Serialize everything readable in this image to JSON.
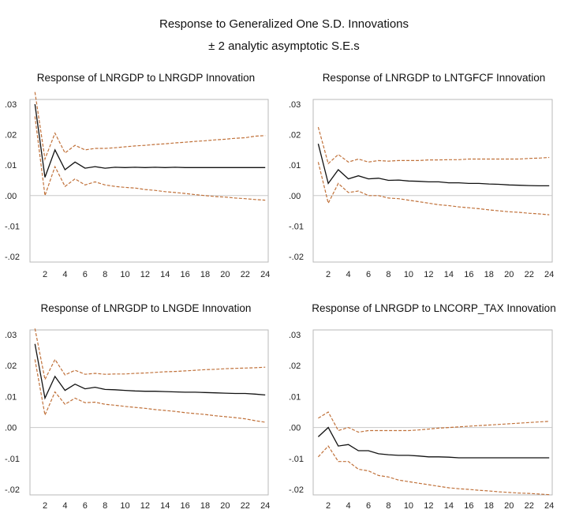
{
  "page": {
    "title": "Response to Generalized One S.D. Innovations",
    "subtitle": "± 2 analytic asymptotic S.E.s"
  },
  "colors": {
    "response": "#111111",
    "band": "#c0713a"
  },
  "chart_data": [
    {
      "type": "line",
      "title": "Response of LNRGDP to LNRGDP Innovation",
      "x": [
        1,
        2,
        3,
        4,
        5,
        6,
        7,
        8,
        9,
        10,
        11,
        12,
        13,
        14,
        15,
        16,
        17,
        18,
        19,
        20,
        21,
        22,
        23,
        24
      ],
      "ylim": [
        -0.02,
        0.03
      ],
      "yticks": [
        ".03",
        ".02",
        ".01",
        ".00",
        "-.01",
        "-.02"
      ],
      "ytick_values": [
        0.03,
        0.02,
        0.01,
        0.0,
        -0.01,
        -0.02
      ],
      "xticks": [
        2,
        4,
        6,
        8,
        10,
        12,
        14,
        16,
        18,
        20,
        22,
        24
      ],
      "series": [
        {
          "name": "response",
          "values": [
            0.03,
            0.006,
            0.015,
            0.0085,
            0.011,
            0.009,
            0.0095,
            0.009,
            0.0093,
            0.0092,
            0.0093,
            0.0092,
            0.0093,
            0.0092,
            0.0093,
            0.0092,
            0.0092,
            0.0092,
            0.0092,
            0.0092,
            0.0092,
            0.0092,
            0.0092,
            0.0092
          ]
        },
        {
          "name": "upper",
          "values": [
            0.034,
            0.012,
            0.0205,
            0.014,
            0.0165,
            0.015,
            0.0155,
            0.0155,
            0.0157,
            0.016,
            0.0163,
            0.0165,
            0.0168,
            0.017,
            0.0173,
            0.0175,
            0.0178,
            0.018,
            0.0183,
            0.0185,
            0.0188,
            0.019,
            0.0195,
            0.0197
          ]
        },
        {
          "name": "lower",
          "values": [
            0.026,
            0.0,
            0.0095,
            0.003,
            0.0055,
            0.0035,
            0.0045,
            0.0035,
            0.003,
            0.0027,
            0.0025,
            0.002,
            0.0017,
            0.0013,
            0.001,
            0.0007,
            0.0003,
            0.0,
            -0.0003,
            -0.0005,
            -0.0008,
            -0.001,
            -0.0013,
            -0.0015
          ]
        }
      ]
    },
    {
      "type": "line",
      "title": "Response of LNRGDP to LNTGFCF Innovation",
      "x": [
        1,
        2,
        3,
        4,
        5,
        6,
        7,
        8,
        9,
        10,
        11,
        12,
        13,
        14,
        15,
        16,
        17,
        18,
        19,
        20,
        21,
        22,
        23,
        24
      ],
      "ylim": [
        -0.02,
        0.03
      ],
      "yticks": [
        ".03",
        ".02",
        ".01",
        ".00",
        "-.01",
        "-.02"
      ],
      "ytick_values": [
        0.03,
        0.02,
        0.01,
        0.0,
        -0.01,
        -0.02
      ],
      "xticks": [
        2,
        4,
        6,
        8,
        10,
        12,
        14,
        16,
        18,
        20,
        22,
        24
      ],
      "series": [
        {
          "name": "response",
          "values": [
            0.017,
            0.004,
            0.0085,
            0.0055,
            0.0065,
            0.0055,
            0.0057,
            0.005,
            0.0051,
            0.0048,
            0.0047,
            0.0045,
            0.0045,
            0.0042,
            0.0042,
            0.004,
            0.004,
            0.0038,
            0.0037,
            0.0035,
            0.0034,
            0.0033,
            0.0032,
            0.0032
          ]
        },
        {
          "name": "upper",
          "values": [
            0.0225,
            0.0105,
            0.0135,
            0.011,
            0.012,
            0.011,
            0.0115,
            0.0113,
            0.0115,
            0.0115,
            0.0115,
            0.0117,
            0.0117,
            0.0118,
            0.0118,
            0.012,
            0.012,
            0.012,
            0.012,
            0.012,
            0.012,
            0.0122,
            0.0123,
            0.0125
          ]
        },
        {
          "name": "lower",
          "values": [
            0.011,
            -0.0025,
            0.004,
            0.001,
            0.0015,
            0.0,
            0.0,
            -0.0008,
            -0.001,
            -0.0015,
            -0.002,
            -0.0025,
            -0.003,
            -0.0033,
            -0.0037,
            -0.004,
            -0.0043,
            -0.0047,
            -0.005,
            -0.0053,
            -0.0055,
            -0.0058,
            -0.006,
            -0.0063
          ]
        }
      ]
    },
    {
      "type": "line",
      "title": "Response of LNRGDP to LNGDE Innovation",
      "x": [
        1,
        2,
        3,
        4,
        5,
        6,
        7,
        8,
        9,
        10,
        11,
        12,
        13,
        14,
        15,
        16,
        17,
        18,
        19,
        20,
        21,
        22,
        23,
        24
      ],
      "ylim": [
        -0.02,
        0.03
      ],
      "yticks": [
        ".03",
        ".02",
        ".01",
        ".00",
        "-.01",
        "-.02"
      ],
      "ytick_values": [
        0.03,
        0.02,
        0.01,
        0.0,
        -0.01,
        -0.02
      ],
      "xticks": [
        2,
        4,
        6,
        8,
        10,
        12,
        14,
        16,
        18,
        20,
        22,
        24
      ],
      "series": [
        {
          "name": "response",
          "values": [
            0.027,
            0.0095,
            0.0165,
            0.012,
            0.014,
            0.0125,
            0.013,
            0.0123,
            0.0122,
            0.012,
            0.0118,
            0.0117,
            0.0117,
            0.0116,
            0.0115,
            0.0114,
            0.0114,
            0.0113,
            0.0112,
            0.0111,
            0.011,
            0.011,
            0.0108,
            0.0105
          ]
        },
        {
          "name": "upper",
          "values": [
            0.032,
            0.0155,
            0.022,
            0.017,
            0.0185,
            0.0172,
            0.0175,
            0.0172,
            0.0173,
            0.0173,
            0.0175,
            0.0176,
            0.0178,
            0.018,
            0.0181,
            0.0183,
            0.0185,
            0.0187,
            0.0188,
            0.019,
            0.0191,
            0.0192,
            0.0193,
            0.0195
          ]
        },
        {
          "name": "lower",
          "values": [
            0.022,
            0.004,
            0.0115,
            0.0075,
            0.0095,
            0.008,
            0.0082,
            0.0075,
            0.0072,
            0.0068,
            0.0065,
            0.0062,
            0.0058,
            0.0055,
            0.0052,
            0.0048,
            0.0045,
            0.0042,
            0.0038,
            0.0035,
            0.0032,
            0.0028,
            0.0022,
            0.0017
          ]
        }
      ]
    },
    {
      "type": "line",
      "title": "Response of LNRGDP to LNCORP_TAX Innovation",
      "x": [
        1,
        2,
        3,
        4,
        5,
        6,
        7,
        8,
        9,
        10,
        11,
        12,
        13,
        14,
        15,
        16,
        17,
        18,
        19,
        20,
        21,
        22,
        23,
        24
      ],
      "ylim": [
        -0.02,
        0.03
      ],
      "yticks": [
        ".03",
        ".02",
        ".01",
        ".00",
        "-.01",
        "-.02"
      ],
      "ytick_values": [
        0.03,
        0.02,
        0.01,
        0.0,
        -0.01,
        -0.02
      ],
      "xticks": [
        2,
        4,
        6,
        8,
        10,
        12,
        14,
        16,
        18,
        20,
        22,
        24
      ],
      "series": [
        {
          "name": "response",
          "values": [
            -0.003,
            0.0,
            -0.006,
            -0.0055,
            -0.0075,
            -0.0075,
            -0.0085,
            -0.0088,
            -0.009,
            -0.009,
            -0.0092,
            -0.0095,
            -0.0095,
            -0.0096,
            -0.0098,
            -0.0098,
            -0.0098,
            -0.0098,
            -0.0098,
            -0.0098,
            -0.0098,
            -0.0098,
            -0.0098,
            -0.0098
          ]
        },
        {
          "name": "upper",
          "values": [
            0.003,
            0.005,
            -0.001,
            0.0,
            -0.0015,
            -0.001,
            -0.001,
            -0.001,
            -0.001,
            -0.001,
            -0.0008,
            -0.0005,
            -0.0002,
            0.0,
            0.0002,
            0.0004,
            0.0006,
            0.0008,
            0.001,
            0.0012,
            0.0014,
            0.0016,
            0.0018,
            0.002
          ]
        },
        {
          "name": "lower",
          "values": [
            -0.0095,
            -0.006,
            -0.011,
            -0.011,
            -0.0135,
            -0.014,
            -0.0155,
            -0.016,
            -0.017,
            -0.0175,
            -0.018,
            -0.0185,
            -0.019,
            -0.0195,
            -0.0198,
            -0.02,
            -0.0203,
            -0.0205,
            -0.0208,
            -0.021,
            -0.0212,
            -0.0213,
            -0.0215,
            -0.0217
          ]
        }
      ]
    }
  ]
}
